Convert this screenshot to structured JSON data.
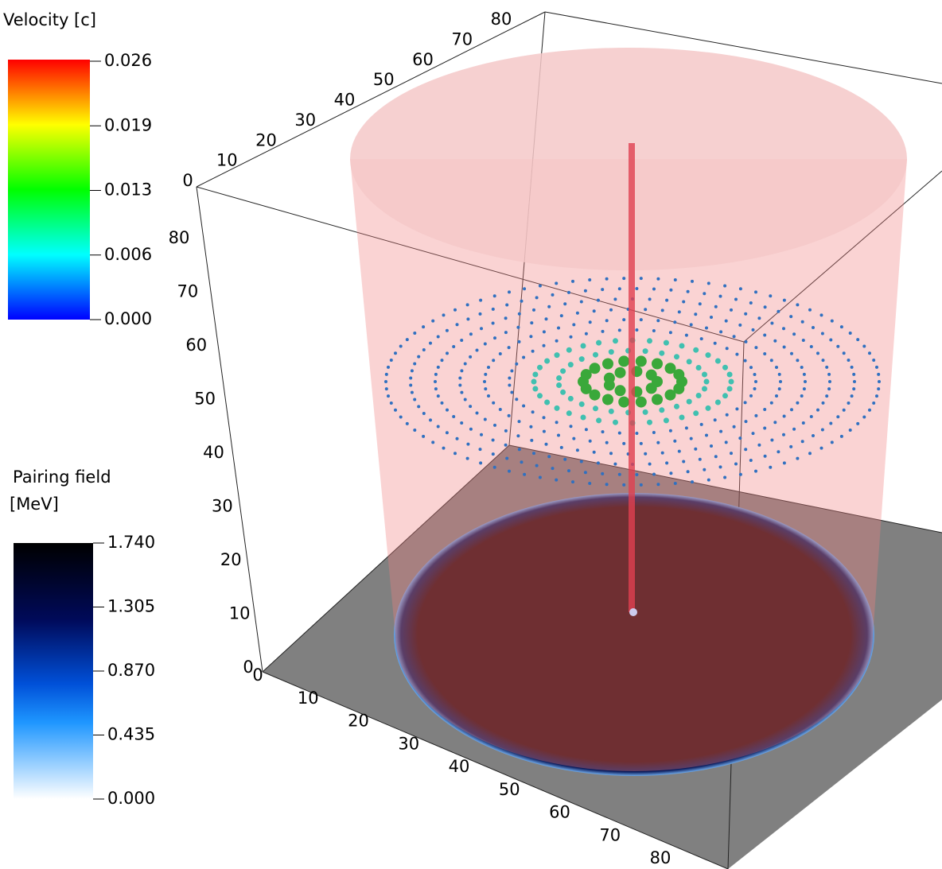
{
  "velocity_legend": {
    "title": "Velocity [c]",
    "ticks": [
      "0.026",
      "0.019",
      "0.013",
      "0.006",
      "0.000"
    ]
  },
  "pairing_legend": {
    "title": "Pairing field",
    "unit": "[MeV]",
    "ticks": [
      "1.740",
      "1.305",
      "0.870",
      "0.435",
      "0.000"
    ]
  },
  "axes": {
    "top_axis_labels": [
      "0",
      "10",
      "20",
      "30",
      "40",
      "50",
      "60",
      "70",
      "80"
    ],
    "vertical_axis_labels": [
      "0",
      "10",
      "20",
      "30",
      "40",
      "50",
      "60",
      "70",
      "80"
    ],
    "bottom_axis_labels": [
      "0",
      "10",
      "20",
      "30",
      "40",
      "50",
      "60",
      "70",
      "80"
    ]
  }
}
